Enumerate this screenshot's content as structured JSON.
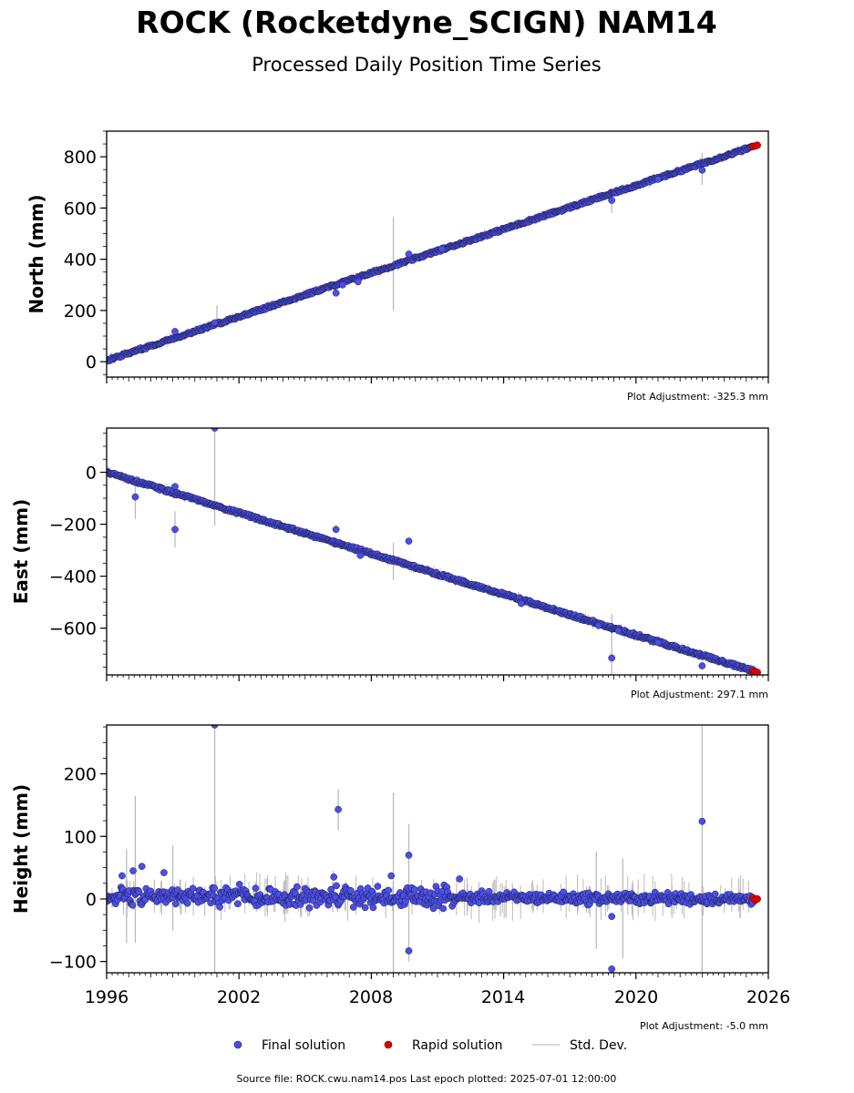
{
  "title": "ROCK (Rocketdyne_SCIGN) NAM14",
  "subtitle": "Processed Daily Position Time Series",
  "chart_data": {
    "type": "scatter",
    "x_axis": {
      "ticks": [
        "1996",
        "2002",
        "2008",
        "2014",
        "2020",
        "2026"
      ],
      "range": [
        1996,
        2026
      ]
    },
    "panels": [
      {
        "ylabel": "North (mm)",
        "ylim": [
          -60,
          900
        ],
        "yticks": [
          "0",
          "200",
          "400",
          "600",
          "800"
        ],
        "adjustment": "Plot Adjustment: -325.3 mm",
        "trend": [
          [
            1996.0,
            5
          ],
          [
            2025.5,
            845
          ]
        ],
        "noise": 5,
        "outliers": [
          [
            1999.1,
            118
          ],
          [
            2000.9,
            152
          ],
          [
            2006.4,
            268
          ],
          [
            2006.7,
            300
          ],
          [
            2007.4,
            312
          ],
          [
            2009.7,
            420
          ],
          [
            2011.2,
            440
          ],
          [
            2018.9,
            630
          ],
          [
            2021.0,
            712
          ],
          [
            2023.0,
            748
          ]
        ],
        "sigma_bars": [
          [
            2009.0,
            200,
            565
          ],
          [
            2001.0,
            130,
            220
          ],
          [
            2023.0,
            690,
            815
          ],
          [
            2018.9,
            580,
            650
          ]
        ],
        "rapid": [
          [
            2025.3,
            840
          ],
          [
            2025.4,
            842
          ],
          [
            2025.5,
            845
          ]
        ]
      },
      {
        "ylabel": "East (mm)",
        "ylim": [
          -780,
          170
        ],
        "yticks": [
          "0",
          "−200",
          "−400",
          "−600"
        ],
        "adjustment": "Plot Adjustment: 297.1 mm",
        "trend": [
          [
            1996.0,
            0
          ],
          [
            2025.5,
            -770
          ]
        ],
        "noise": 6,
        "outliers": [
          [
            1997.3,
            -95
          ],
          [
            1999.1,
            -220
          ],
          [
            1999.1,
            -55
          ],
          [
            2000.9,
            170
          ],
          [
            2006.4,
            -220
          ],
          [
            2007.5,
            -320
          ],
          [
            2009.7,
            -265
          ],
          [
            2014.8,
            -505
          ],
          [
            2018.3,
            -590
          ],
          [
            2018.9,
            -715
          ],
          [
            2019.2,
            -610
          ],
          [
            2021.0,
            -655
          ],
          [
            2023.0,
            -745
          ]
        ],
        "sigma_bars": [
          [
            2000.9,
            -205,
            170
          ],
          [
            1997.3,
            -180,
            -20
          ],
          [
            1999.1,
            -290,
            -150
          ],
          [
            2009.0,
            -415,
            -270
          ],
          [
            2018.9,
            -790,
            -545
          ]
        ],
        "rapid": [
          [
            2025.3,
            -766
          ],
          [
            2025.4,
            -768
          ],
          [
            2025.5,
            -770
          ]
        ]
      },
      {
        "ylabel": "Height (mm)",
        "ylim": [
          -118,
          278
        ],
        "yticks": [
          "200",
          "100",
          "0",
          "−100"
        ],
        "adjustment": "Plot Adjustment: -5.0 mm",
        "trend": [
          [
            1996.0,
            5
          ],
          [
            2025.5,
            0
          ]
        ],
        "noise": 9,
        "outliers": [
          [
            1996.7,
            37
          ],
          [
            1997.2,
            45
          ],
          [
            1997.6,
            52
          ],
          [
            1998.6,
            42
          ],
          [
            2000.9,
            278
          ],
          [
            2006.3,
            35
          ],
          [
            2006.5,
            143
          ],
          [
            2008.9,
            37
          ],
          [
            2009.7,
            70
          ],
          [
            2009.7,
            -83
          ],
          [
            2012.0,
            32
          ],
          [
            2018.9,
            -28
          ],
          [
            2018.9,
            -112
          ],
          [
            2023.0,
            124
          ]
        ],
        "sigma_bars": [
          [
            2000.9,
            -118,
            278
          ],
          [
            2023.0,
            -118,
            278
          ],
          [
            2009.0,
            -118,
            170
          ],
          [
            1997.3,
            -70,
            165
          ],
          [
            2006.5,
            110,
            175
          ],
          [
            2009.7,
            -100,
            120
          ],
          [
            2019.4,
            -95,
            65
          ],
          [
            2018.2,
            -80,
            75
          ],
          [
            1996.9,
            -70,
            80
          ],
          [
            1999.0,
            -50,
            85
          ]
        ],
        "rapid": [
          [
            2025.3,
            2
          ],
          [
            2025.4,
            -2
          ],
          [
            2025.5,
            0
          ]
        ]
      }
    ],
    "legend": [
      "Final solution",
      "Rapid solution",
      "Std. Dev."
    ],
    "colors": {
      "final": "#4b4fe8",
      "final_edge": "#1a1a40",
      "rapid": "#e00000",
      "std": "#bbbbbb"
    }
  },
  "footer": "Source file: ROCK.cwu.nam14.pos  Last epoch plotted: 2025-07-01 12:00:00"
}
